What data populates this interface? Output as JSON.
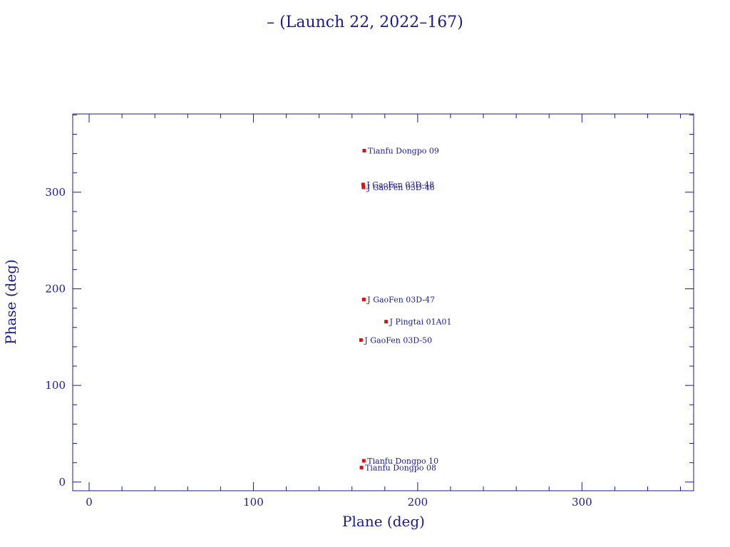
{
  "chart_data": {
    "type": "scatter",
    "title": "– (Launch 22, 2022–167)",
    "xlabel": "Plane (deg)",
    "ylabel": "Phase (deg)",
    "xlim": [
      -10,
      368
    ],
    "ylim": [
      -9,
      381
    ],
    "xticks": [
      0,
      100,
      200,
      300
    ],
    "yticks": [
      0,
      100,
      200,
      300
    ],
    "grid": false,
    "marker_color": "#dd1111",
    "axis_color": "#1a1a8c",
    "points": [
      {
        "label": "Tianfu Dongpo 09",
        "x": 167.5,
        "y": 343
      },
      {
        "label": "J GaoFen 03D-48",
        "x": 166.8,
        "y": 308
      },
      {
        "label": "J GaoFen 03D-46",
        "x": 167.0,
        "y": 305
      },
      {
        "label": "J GaoFen 03D-47",
        "x": 167.2,
        "y": 189
      },
      {
        "label": "J Pingtai 01A01",
        "x": 180.8,
        "y": 166
      },
      {
        "label": "J GaoFen 03D-50",
        "x": 165.5,
        "y": 147
      },
      {
        "label": "Tianfu Dongpo 10",
        "x": 167.2,
        "y": 22
      },
      {
        "label": "Tianfu Dongpo 08",
        "x": 165.8,
        "y": 15
      }
    ]
  }
}
